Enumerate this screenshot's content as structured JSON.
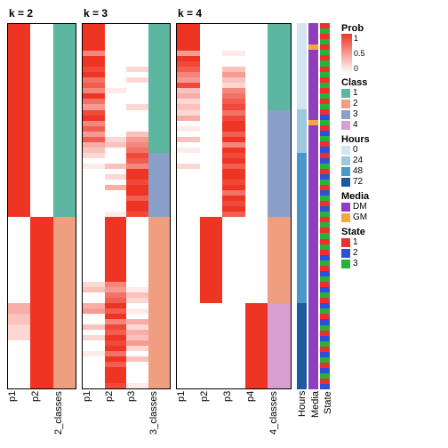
{
  "panel_titles": [
    "k = 2",
    "k = 3",
    "k = 4"
  ],
  "xlabels": [
    [
      "p1",
      "p2",
      "2_classes"
    ],
    [
      "p1",
      "p2",
      "p3",
      "3_classes"
    ],
    [
      "p1",
      "p2",
      "p3",
      "p4",
      "4_classes"
    ]
  ],
  "anno_labels": [
    "Hours",
    "Media",
    "State"
  ],
  "colors": {
    "prob_low": "#ffffff",
    "prob_high": "#ee3524",
    "class": {
      "1": "#5cb6a0",
      "2": "#f09e80",
      "3": "#8aa0c8",
      "4": "#d89ecf"
    },
    "hours": {
      "0": "#d5e5f0",
      "24": "#9ec8de",
      "48": "#4a97c9",
      "72": "#1c5a9c"
    },
    "media": {
      "DM": "#8e3fbf",
      "GM": "#f7a63a"
    },
    "state": {
      "1": "#ee2e2f",
      "2": "#2e4fd8",
      "3": "#26b23b"
    }
  },
  "heatmaps": {
    "k2": {
      "cols": [
        "p1",
        "p2",
        "class"
      ],
      "rows": [
        [
          1,
          0,
          "c1"
        ],
        [
          1,
          0,
          "c1"
        ],
        [
          1,
          0,
          "c1"
        ],
        [
          1,
          0,
          "c1"
        ],
        [
          1,
          0,
          "c1"
        ],
        [
          1,
          0,
          "c1"
        ],
        [
          1,
          0,
          "c1"
        ],
        [
          1,
          0,
          "c1"
        ],
        [
          1,
          0,
          "c1"
        ],
        [
          1,
          0,
          "c1"
        ],
        [
          1,
          0,
          "c1"
        ],
        [
          1,
          0,
          "c1"
        ],
        [
          1,
          0,
          "c1"
        ],
        [
          1,
          0,
          "c1"
        ],
        [
          1,
          0,
          "c1"
        ],
        [
          1,
          0,
          "c1"
        ],
        [
          1,
          0,
          "c1"
        ],
        [
          1,
          0,
          "c1"
        ],
        [
          1,
          0,
          "c1"
        ],
        [
          1,
          0,
          "c1"
        ],
        [
          1,
          0,
          "c1"
        ],
        [
          1,
          0,
          "c1"
        ],
        [
          1,
          0,
          "c1"
        ],
        [
          1,
          0,
          "c1"
        ],
        [
          1,
          0,
          "c1"
        ],
        [
          1,
          0,
          "c1"
        ],
        [
          1,
          0,
          "c1"
        ],
        [
          1,
          0,
          "c1"
        ],
        [
          1,
          0,
          "c1"
        ],
        [
          1,
          0,
          "c1"
        ],
        [
          1,
          0,
          "c1"
        ],
        [
          1,
          0,
          "c1"
        ],
        [
          1,
          0,
          "c1"
        ],
        [
          1,
          0,
          "c1"
        ],
        [
          1,
          0,
          "c1"
        ],
        [
          1,
          0,
          "c1"
        ],
        [
          0,
          1,
          "c2"
        ],
        [
          0,
          1,
          "c2"
        ],
        [
          0,
          1,
          "c2"
        ],
        [
          0,
          1,
          "c2"
        ],
        [
          0,
          1,
          "c2"
        ],
        [
          0,
          1,
          "c2"
        ],
        [
          0,
          1,
          "c2"
        ],
        [
          0,
          1,
          "c2"
        ],
        [
          0,
          1,
          "c2"
        ],
        [
          0,
          1,
          "c2"
        ],
        [
          0,
          1,
          "c2"
        ],
        [
          0,
          1,
          "c2"
        ],
        [
          0,
          1,
          "c2"
        ],
        [
          0,
          1,
          "c2"
        ],
        [
          0,
          1,
          "c2"
        ],
        [
          0,
          1,
          "c2"
        ],
        [
          0.4,
          1,
          "c2"
        ],
        [
          0.4,
          1,
          "c2"
        ],
        [
          0.3,
          1,
          "c2"
        ],
        [
          0.3,
          1,
          "c2"
        ],
        [
          0.2,
          1,
          "c2"
        ],
        [
          0.2,
          1,
          "c2"
        ],
        [
          0.2,
          1,
          "c2"
        ],
        [
          0,
          1,
          "c2"
        ],
        [
          0,
          1,
          "c2"
        ],
        [
          0,
          1,
          "c2"
        ],
        [
          0,
          1,
          "c2"
        ],
        [
          0,
          1,
          "c2"
        ],
        [
          0,
          1,
          "c2"
        ],
        [
          0,
          1,
          "c2"
        ],
        [
          0,
          1,
          "c2"
        ],
        [
          0,
          1,
          "c2"
        ]
      ]
    },
    "k3": {
      "cols": [
        "p1",
        "p2",
        "p3",
        "class"
      ],
      "rows": [
        [
          1,
          0,
          0,
          "c1"
        ],
        [
          1,
          0,
          0,
          "c1"
        ],
        [
          1,
          0,
          0,
          "c1"
        ],
        [
          1,
          0,
          0,
          "c1"
        ],
        [
          1,
          0,
          0,
          "c1"
        ],
        [
          0.6,
          0,
          0,
          "c1"
        ],
        [
          1,
          0,
          0,
          "c1"
        ],
        [
          1,
          0,
          0,
          "c1"
        ],
        [
          0.9,
          0,
          0.2,
          "c1"
        ],
        [
          1,
          0,
          0,
          "c1"
        ],
        [
          0.7,
          0,
          0.2,
          "c1"
        ],
        [
          0.8,
          0,
          0,
          "c1"
        ],
        [
          0.6,
          0.1,
          0,
          "c1"
        ],
        [
          1,
          0,
          0,
          "c1"
        ],
        [
          0.7,
          0,
          0,
          "c1"
        ],
        [
          0.5,
          0,
          0.2,
          "c1"
        ],
        [
          0.9,
          0,
          0,
          "c1"
        ],
        [
          1,
          0,
          0,
          "c1"
        ],
        [
          0.6,
          0,
          0,
          "c1"
        ],
        [
          0.8,
          0,
          0,
          "c1"
        ],
        [
          0.5,
          0,
          0.3,
          "c1"
        ],
        [
          0.8,
          0.2,
          0.5,
          "c1"
        ],
        [
          0.4,
          0.3,
          0.6,
          "c1"
        ],
        [
          0.3,
          0,
          0.7,
          "c1"
        ],
        [
          0.2,
          0,
          0.9,
          "c3"
        ],
        [
          0,
          0,
          0.8,
          "c3"
        ],
        [
          0.1,
          0.3,
          0.6,
          "c3"
        ],
        [
          0,
          0,
          1,
          "c3"
        ],
        [
          0,
          0.2,
          1,
          "c3"
        ],
        [
          0,
          0,
          0.9,
          "c3"
        ],
        [
          0,
          0.4,
          1,
          "c3"
        ],
        [
          0,
          0,
          1,
          "c3"
        ],
        [
          0,
          0,
          0.8,
          "c3"
        ],
        [
          0,
          0,
          1,
          "c3"
        ],
        [
          0,
          0,
          1,
          "c3"
        ],
        [
          0,
          0.1,
          0.9,
          "c3"
        ],
        [
          0,
          1,
          0,
          "c2"
        ],
        [
          0,
          1,
          0,
          "c2"
        ],
        [
          0,
          1,
          0,
          "c2"
        ],
        [
          0,
          1,
          0,
          "c2"
        ],
        [
          0,
          1,
          0,
          "c2"
        ],
        [
          0,
          1,
          0,
          "c2"
        ],
        [
          0,
          1,
          0,
          "c2"
        ],
        [
          0,
          1,
          0,
          "c2"
        ],
        [
          0,
          1,
          0,
          "c2"
        ],
        [
          0,
          1,
          0,
          "c2"
        ],
        [
          0,
          1,
          0,
          "c2"
        ],
        [
          0,
          1,
          0,
          "c2"
        ],
        [
          0.2,
          0.6,
          0,
          "c2"
        ],
        [
          0.3,
          0.5,
          0.1,
          "c2"
        ],
        [
          0,
          0.7,
          0.3,
          "c2"
        ],
        [
          0,
          0.8,
          0.2,
          "c2"
        ],
        [
          0.4,
          1,
          0,
          "c2"
        ],
        [
          0.5,
          0.8,
          0.1,
          "c2"
        ],
        [
          0,
          1,
          0,
          "c2"
        ],
        [
          0,
          0.6,
          0.4,
          "c2"
        ],
        [
          0.3,
          0.9,
          0.2,
          "c2"
        ],
        [
          0,
          0.8,
          0.4,
          "c2"
        ],
        [
          0.2,
          1,
          0.3,
          "c2"
        ],
        [
          0,
          0.9,
          0.5,
          "c2"
        ],
        [
          0,
          1,
          0.2,
          "c2"
        ],
        [
          0.1,
          0.7,
          0,
          "c2"
        ],
        [
          0,
          1,
          0.3,
          "c2"
        ],
        [
          0,
          0.8,
          0,
          "c2"
        ],
        [
          0,
          1,
          0,
          "c2"
        ],
        [
          0,
          1,
          0,
          "c2"
        ],
        [
          0,
          1,
          0,
          "c2"
        ],
        [
          0,
          0.9,
          0.1,
          "c2"
        ]
      ]
    },
    "k4": {
      "cols": [
        "p1",
        "p2",
        "p3",
        "p4",
        "class"
      ],
      "rows": [
        [
          1,
          0,
          0,
          0,
          "c1"
        ],
        [
          1,
          0,
          0,
          0,
          "c1"
        ],
        [
          1,
          0,
          0,
          0,
          "c1"
        ],
        [
          1,
          0,
          0,
          0,
          "c1"
        ],
        [
          1,
          0,
          0,
          0,
          "c1"
        ],
        [
          0.5,
          0,
          0.1,
          0,
          "c1"
        ],
        [
          1,
          0,
          0,
          0,
          "c1"
        ],
        [
          0.9,
          0,
          0,
          0,
          "c1"
        ],
        [
          0.8,
          0,
          0.3,
          0,
          "c1"
        ],
        [
          0.6,
          0,
          0.5,
          0,
          "c1"
        ],
        [
          0.5,
          0,
          0.3,
          0,
          "c1"
        ],
        [
          0.9,
          0,
          0.2,
          0,
          "c1"
        ],
        [
          0.3,
          0,
          0.6,
          0,
          "c1"
        ],
        [
          0.4,
          0,
          0.7,
          0,
          "c1"
        ],
        [
          0.2,
          0,
          0.8,
          0,
          "c1"
        ],
        [
          0.3,
          0,
          0.9,
          0,
          "c1"
        ],
        [
          0.2,
          0,
          0.7,
          0,
          "c3"
        ],
        [
          0.4,
          0,
          0.9,
          0,
          "c3"
        ],
        [
          0,
          0,
          1,
          0,
          "c3"
        ],
        [
          0.1,
          0,
          1,
          0,
          "c3"
        ],
        [
          0,
          0,
          0.8,
          0,
          "c3"
        ],
        [
          0.3,
          0,
          1,
          0,
          "c3"
        ],
        [
          0,
          0,
          0.6,
          0,
          "c3"
        ],
        [
          0.1,
          0,
          1,
          0,
          "c3"
        ],
        [
          0,
          0,
          0.9,
          0,
          "c3"
        ],
        [
          0,
          0,
          1,
          0,
          "c3"
        ],
        [
          0.2,
          0,
          0.8,
          0,
          "c3"
        ],
        [
          0,
          0,
          1,
          0,
          "c3"
        ],
        [
          0,
          0,
          1,
          0,
          "c3"
        ],
        [
          0,
          0,
          0.9,
          0,
          "c3"
        ],
        [
          0,
          0,
          1,
          0,
          "c3"
        ],
        [
          0,
          0,
          0.7,
          0,
          "c3"
        ],
        [
          0,
          0,
          1,
          0,
          "c3"
        ],
        [
          0,
          0,
          0.9,
          0,
          "c3"
        ],
        [
          0,
          0,
          1,
          0,
          "c3"
        ],
        [
          0,
          0,
          0.8,
          0,
          "c3"
        ],
        [
          0,
          1,
          0,
          0,
          "c2"
        ],
        [
          0,
          1,
          0,
          0,
          "c2"
        ],
        [
          0,
          1,
          0,
          0,
          "c2"
        ],
        [
          0,
          1,
          0,
          0,
          "c2"
        ],
        [
          0,
          1,
          0,
          0,
          "c2"
        ],
        [
          0,
          1,
          0,
          0,
          "c2"
        ],
        [
          0,
          1,
          0,
          0,
          "c2"
        ],
        [
          0,
          1,
          0,
          0,
          "c2"
        ],
        [
          0,
          1,
          0,
          0,
          "c2"
        ],
        [
          0,
          1,
          0,
          0,
          "c2"
        ],
        [
          0,
          1,
          0,
          0,
          "c2"
        ],
        [
          0,
          1,
          0,
          0,
          "c2"
        ],
        [
          0,
          1,
          0,
          0,
          "c2"
        ],
        [
          0,
          1,
          0,
          0,
          "c2"
        ],
        [
          0,
          1,
          0,
          0,
          "c2"
        ],
        [
          0,
          1,
          0,
          0,
          "c2"
        ],
        [
          0,
          0,
          0,
          1,
          "c4"
        ],
        [
          0,
          0,
          0,
          1,
          "c4"
        ],
        [
          0,
          0,
          0,
          1,
          "c4"
        ],
        [
          0,
          0,
          0,
          1,
          "c4"
        ],
        [
          0,
          0,
          0,
          1,
          "c4"
        ],
        [
          0,
          0,
          0,
          1,
          "c4"
        ],
        [
          0,
          0,
          0,
          1,
          "c4"
        ],
        [
          0,
          0,
          0,
          1,
          "c4"
        ],
        [
          0,
          0,
          0,
          1,
          "c4"
        ],
        [
          0,
          0,
          0,
          1,
          "c4"
        ],
        [
          0,
          0,
          0,
          1,
          "c4"
        ],
        [
          0,
          0,
          0,
          1,
          "c4"
        ],
        [
          0,
          0,
          0,
          1,
          "c4"
        ],
        [
          0,
          0,
          0,
          1,
          "c4"
        ],
        [
          0,
          0,
          0,
          1,
          "c4"
        ],
        [
          0,
          0,
          0,
          1,
          "c4"
        ]
      ]
    }
  },
  "annotations": {
    "hours": [
      0,
      0,
      0,
      0,
      0,
      0,
      0,
      0,
      0,
      0,
      0,
      0,
      0,
      0,
      0,
      0,
      24,
      24,
      24,
      24,
      24,
      24,
      24,
      24,
      48,
      48,
      48,
      48,
      48,
      48,
      48,
      48,
      48,
      48,
      48,
      48,
      48,
      48,
      48,
      48,
      48,
      48,
      48,
      48,
      48,
      48,
      48,
      48,
      48,
      48,
      48,
      48,
      72,
      72,
      72,
      72,
      72,
      72,
      72,
      72,
      72,
      72,
      72,
      72,
      72,
      72,
      72,
      72
    ],
    "media": [
      "DM",
      "DM",
      "DM",
      "DM",
      "GM",
      "DM",
      "DM",
      "DM",
      "DM",
      "DM",
      "DM",
      "DM",
      "DM",
      "DM",
      "DM",
      "DM",
      "DM",
      "DM",
      "GM",
      "DM",
      "DM",
      "DM",
      "DM",
      "DM",
      "DM",
      "DM",
      "DM",
      "DM",
      "DM",
      "DM",
      "DM",
      "DM",
      "DM",
      "DM",
      "DM",
      "DM",
      "DM",
      "DM",
      "DM",
      "DM",
      "DM",
      "DM",
      "DM",
      "DM",
      "DM",
      "DM",
      "DM",
      "DM",
      "DM",
      "DM",
      "DM",
      "DM",
      "DM",
      "DM",
      "DM",
      "DM",
      "DM",
      "DM",
      "DM",
      "DM",
      "DM",
      "DM",
      "DM",
      "DM",
      "DM",
      "DM",
      "DM",
      "DM"
    ],
    "state": [
      1,
      3,
      1,
      3,
      1,
      3,
      1,
      3,
      1,
      3,
      1,
      3,
      1,
      3,
      1,
      3,
      1,
      2,
      3,
      1,
      2,
      3,
      1,
      2,
      1,
      2,
      3,
      1,
      2,
      3,
      1,
      2,
      3,
      1,
      2,
      3,
      1,
      3,
      1,
      3,
      1,
      3,
      1,
      2,
      3,
      1,
      2,
      3,
      1,
      2,
      3,
      1,
      2,
      3,
      1,
      2,
      3,
      1,
      2,
      3,
      1,
      2,
      3,
      1,
      2,
      3,
      1,
      2
    ]
  },
  "legends": {
    "prob": {
      "title": "Prob",
      "ticks": [
        "1",
        "0.5",
        "0"
      ]
    },
    "class": {
      "title": "Class",
      "items": [
        "1",
        "2",
        "3",
        "4"
      ]
    },
    "hours": {
      "title": "Hours",
      "items": [
        "0",
        "24",
        "48",
        "72"
      ]
    },
    "media": {
      "title": "Media",
      "items": [
        "DM",
        "GM"
      ]
    },
    "state": {
      "title": "State",
      "items": [
        "1",
        "2",
        "3"
      ]
    }
  }
}
